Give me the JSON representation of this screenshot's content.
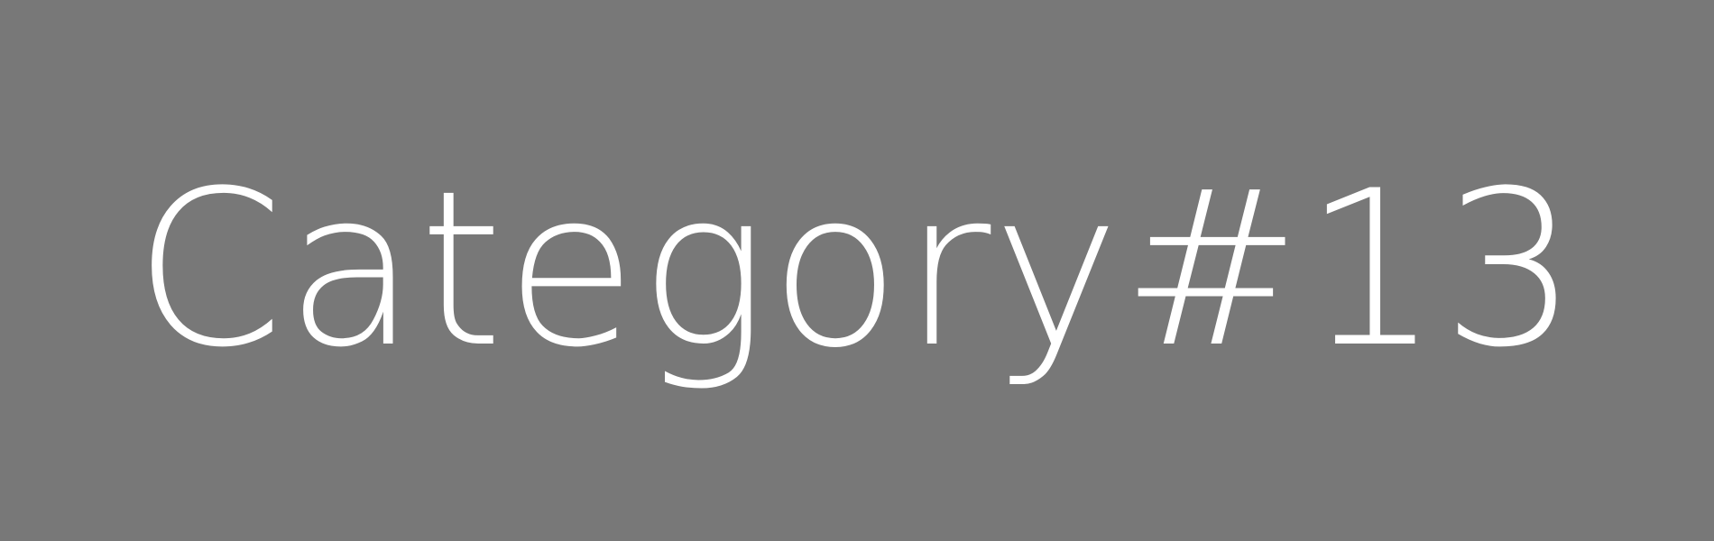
{
  "background_color": "#787878",
  "text_color": "#ffffff",
  "label": "Category#13"
}
